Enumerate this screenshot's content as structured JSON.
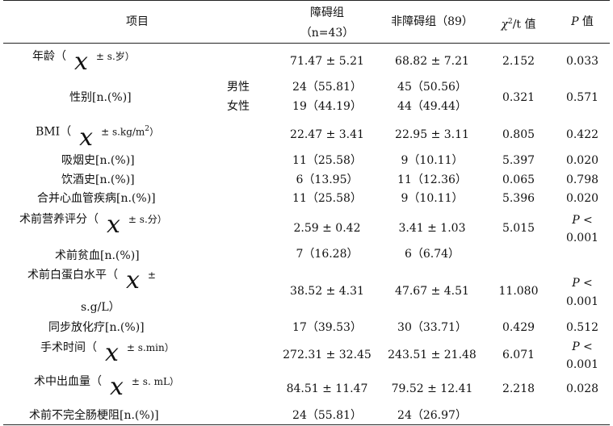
{
  "header": {
    "item": "项目",
    "group_a": "障碍组",
    "group_a_n": "（n=43）",
    "group_b": "非障碍组（89）",
    "stat_symbol": "χ",
    "stat_sup": "2",
    "stat_rest": "/t 值",
    "p_symbol": "P",
    "p_rest": " 值"
  },
  "rows": {
    "age": {
      "label_pre": "年龄（",
      "label_post": "± s.岁）",
      "a": "71.47 ± 5.21",
      "b": "68.82 ± 7.21",
      "stat": "2.152",
      "p": "0.033"
    },
    "sex": {
      "label": "性别[n.(%)]",
      "sub1": "男性",
      "sub2": "女性",
      "a1": "24（55.81）",
      "a2": "19（44.19）",
      "b1": "45（50.56）",
      "b2": "44（49.44）",
      "stat": "0.321",
      "p": "0.571"
    },
    "bmi": {
      "label_pre": "BMI（",
      "label_post": "± s.kg/m",
      "label_sup": "2",
      "label_end": "）",
      "a": "22.47 ± 3.41",
      "b": "22.95 ± 3.11",
      "stat": "0.805",
      "p": "0.422"
    },
    "smoke": {
      "label": "吸烟史[n.(%)]",
      "a": "11（25.58）",
      "b": "9（10.11）",
      "stat": "5.397",
      "p": "0.020"
    },
    "drink": {
      "label": "饮酒史[n.(%)]",
      "a": "6（13.95）",
      "b": "11（12.36）",
      "stat": "0.065",
      "p": "0.798"
    },
    "cvd": {
      "label": "合并心血管疾病[n.(%)]",
      "a": "11（25.58）",
      "b": "9（10.11）",
      "stat": "5.396",
      "p": "0.020"
    },
    "nutrition": {
      "label_pre": "术前营养评分（",
      "label_post": "± s.分）",
      "a": "2.59 ± 0.42",
      "b": "3.41 ± 1.03",
      "stat": "5.015",
      "p_line1": "P <",
      "p_line2": "0.001"
    },
    "anemia": {
      "label": "术前贫血[n.(%)]",
      "a": "7（16.28）",
      "b": "6（6.74）"
    },
    "albumin": {
      "label_pre": "术前白蛋白水平（",
      "label_post": "±",
      "label_line2": "s.g/L）",
      "a": "38.52 ± 4.31",
      "b": "47.67 ± 4.51",
      "stat": "11.080",
      "p_line1": "P <",
      "p_line2": "0.001"
    },
    "chemo": {
      "label": "同步放化疗[n.(%)]",
      "a": "17（39.53）",
      "b": "30（33.71）",
      "stat": "0.429",
      "p": "0.512"
    },
    "optime": {
      "label_pre": "手术时间（",
      "label_post": "± s.min）",
      "a": "272.31 ± 32.45",
      "b": "243.51 ± 21.48",
      "stat": "6.071",
      "p_line1": "P <",
      "p_line2": "0.001"
    },
    "blood": {
      "label_pre": "术中出血量（",
      "label_post": "± s. mL）",
      "a": "84.51 ± 11.47",
      "b": "79.52 ± 12.41",
      "stat": "2.218",
      "p": "0.028"
    },
    "obstruction": {
      "label": "术前不完全肠梗阻[n.(%)]",
      "a": "24（55.81）",
      "b": "24（26.97）"
    }
  },
  "xbar_symbol": "x"
}
